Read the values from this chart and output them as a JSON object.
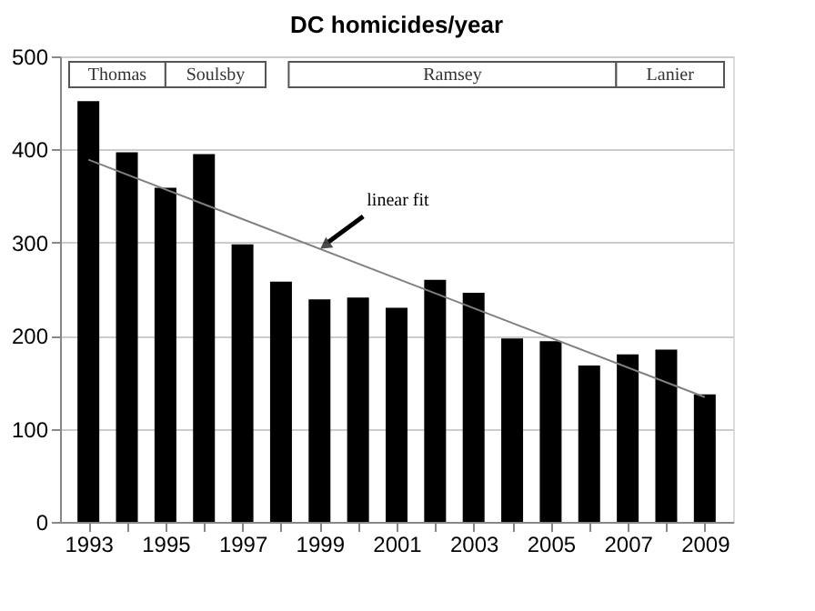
{
  "chart_data": {
    "type": "bar",
    "title": "DC homicides/year",
    "x": [
      1993,
      1994,
      1995,
      1996,
      1997,
      1998,
      1999,
      2000,
      2001,
      2002,
      2003,
      2004,
      2005,
      2006,
      2007,
      2008,
      2009
    ],
    "series": [
      {
        "color": "#000000",
        "values": [
          452,
          397,
          359,
          395,
          298,
          258,
          239,
          241,
          230,
          260,
          246,
          197,
          194,
          168,
          180,
          185,
          137
        ]
      },
      {
        "type": "line",
        "color": "#808080",
        "x": [
          1993,
          2009
        ],
        "values": [
          389,
          134
        ]
      }
    ],
    "xlim": [
      1992.5,
      2009.5
    ],
    "xticks": [
      1993,
      {
        "value": 1994,
        "label": null
      },
      1995,
      {
        "value": 1996,
        "label": null
      },
      1997,
      {
        "value": 1998,
        "label": null
      },
      1999,
      {
        "value": 2000,
        "label": null
      },
      2001,
      {
        "value": 2002,
        "label": null
      },
      2003,
      {
        "value": 2004,
        "label": null
      },
      2005,
      {
        "value": 2006,
        "label": null
      },
      2007,
      {
        "value": 2008,
        "label": null
      },
      2009
    ],
    "ylim": [
      0,
      500
    ],
    "yticks": [
      0,
      100,
      200,
      300,
      400,
      500
    ],
    "grid": "y",
    "bands": [
      {
        "axis": "x",
        "from": 1992.5,
        "to": 1995,
        "label": "Thomas"
      },
      {
        "axis": "x",
        "from": 1995,
        "to": 1997.6,
        "label": "Soulsby"
      },
      {
        "axis": "x",
        "from": 1998.2,
        "to": 2006.7,
        "label": "Ramsey"
      },
      {
        "axis": "x",
        "from": 2006.7,
        "to": 2009.5,
        "label": "Lanier"
      }
    ],
    "annotations": [
      {
        "text": "linear fit",
        "x": 1999,
        "y": 293
      }
    ]
  }
}
